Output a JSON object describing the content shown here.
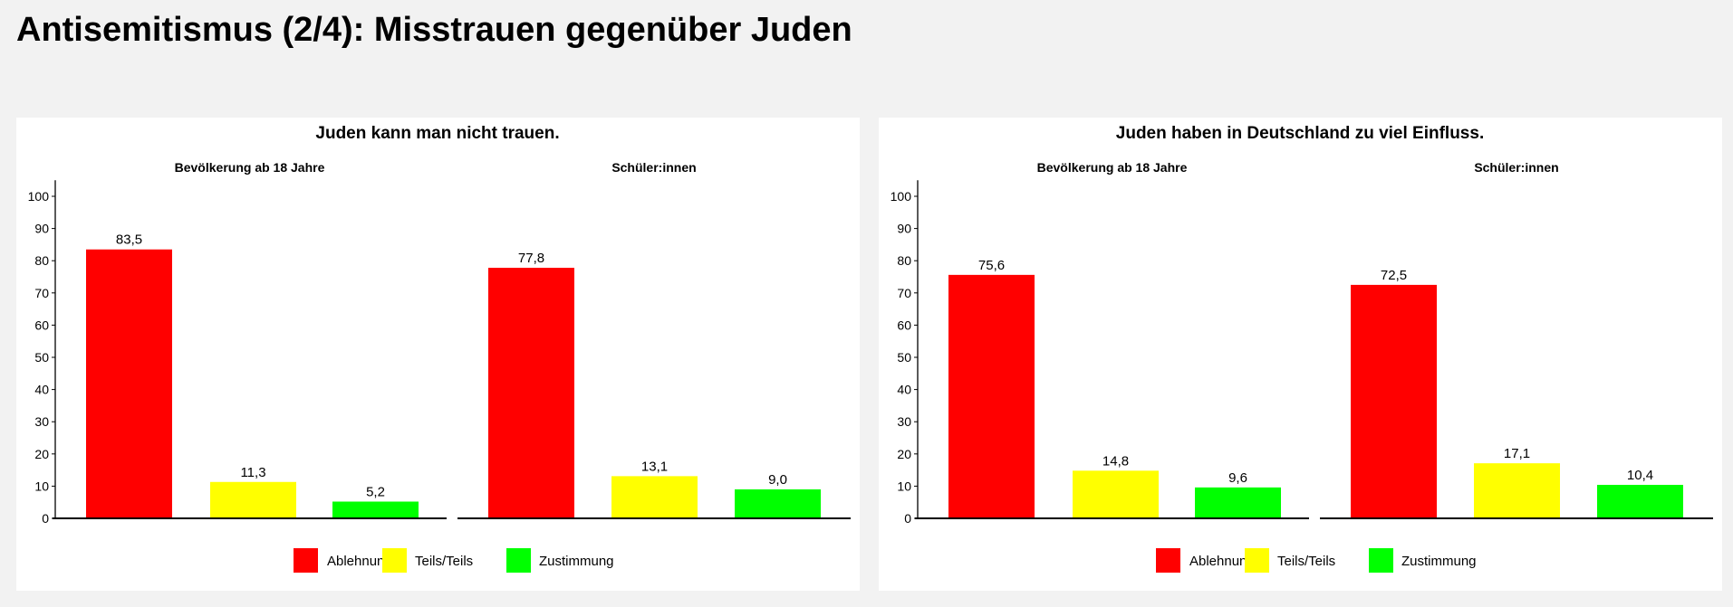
{
  "page_title": "Antisemitismus (2/4): Misstrauen gegenüber Juden",
  "colors": {
    "Ablehnung": "#ff0000",
    "Teils/Teils": "#ffff00",
    "Zustimmung": "#00ff00"
  },
  "chart_data": [
    {
      "type": "bar",
      "title": "Juden kann man nicht trauen.",
      "facets": [
        "Bevölkerung ab 18 Jahre",
        "Schüler:innen"
      ],
      "categories": [
        "Ablehnung",
        "Teils/Teils",
        "Zustimmung"
      ],
      "values": [
        [
          83.5,
          11.3,
          5.2
        ],
        [
          77.8,
          13.1,
          9.0
        ]
      ],
      "labels": [
        [
          "83,5",
          "11,3",
          "5,2"
        ],
        [
          "77,8",
          "13,1",
          "9,0"
        ]
      ],
      "yticks": [
        "0",
        "10",
        "20",
        "30",
        "40",
        "50",
        "60",
        "70",
        "80",
        "90",
        "100"
      ],
      "ylim": [
        0,
        105
      ],
      "legend": [
        "Ablehnung",
        "Teils/Teils",
        "Zustimmung"
      ],
      "legend_position": "bottom"
    },
    {
      "type": "bar",
      "title": "Juden haben in Deutschland zu viel Einfluss.",
      "facets": [
        "Bevölkerung ab 18 Jahre",
        "Schüler:innen"
      ],
      "categories": [
        "Ablehnung",
        "Teils/Teils",
        "Zustimmung"
      ],
      "values": [
        [
          75.6,
          14.8,
          9.6
        ],
        [
          72.5,
          17.1,
          10.4
        ]
      ],
      "labels": [
        [
          "75,6",
          "14,8",
          "9,6"
        ],
        [
          "72,5",
          "17,1",
          "10,4"
        ]
      ],
      "yticks": [
        "0",
        "10",
        "20",
        "30",
        "40",
        "50",
        "60",
        "70",
        "80",
        "90",
        "100"
      ],
      "ylim": [
        0,
        105
      ],
      "legend": [
        "Ablehnung",
        "Teils/Teils",
        "Zustimmung"
      ],
      "legend_position": "bottom"
    }
  ]
}
